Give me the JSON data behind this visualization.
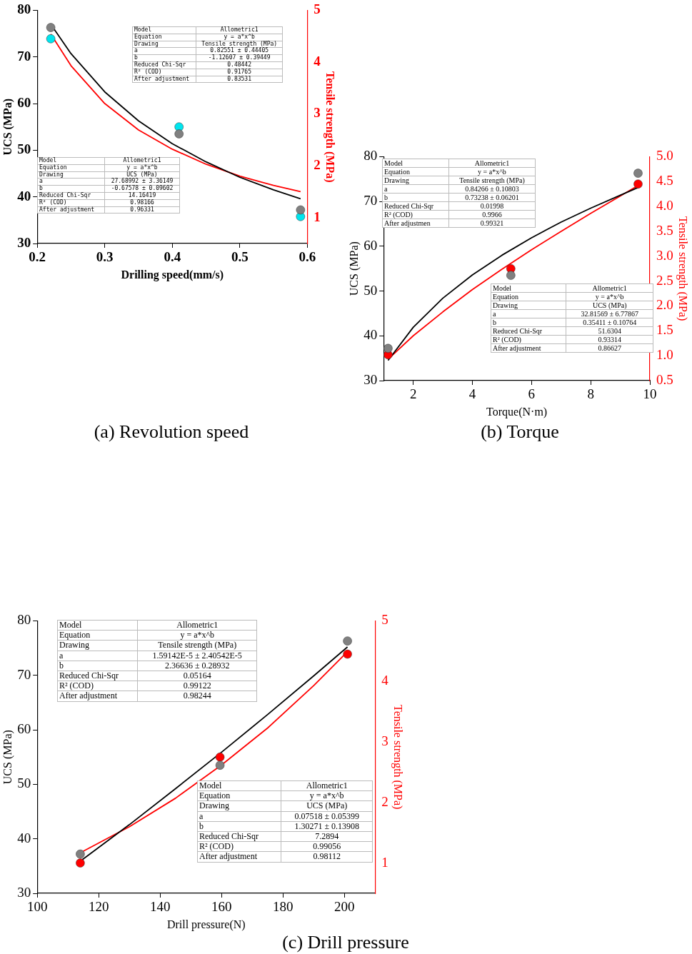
{
  "chart_data": [
    {
      "type": "scatter",
      "xlabel": "Drilling speed(mm/s)",
      "ylabel": "UCS (MPa)",
      "y2label": "Tensile strength (MPa)",
      "xlim": [
        0.2,
        0.6
      ],
      "xticks": [
        0.2,
        0.3,
        0.4,
        0.5,
        0.6
      ],
      "ylim": [
        30,
        80
      ],
      "yticks": [
        30,
        40,
        50,
        60,
        70,
        80
      ],
      "y2lim": [
        0.5,
        5
      ],
      "y2ticks": [
        1,
        2,
        3,
        4,
        5
      ],
      "grid": false,
      "legend": false,
      "marker": "circle",
      "series": [
        {
          "type": "scatter",
          "color": "#808080",
          "x": [
            0.22,
            0.41,
            0.59
          ],
          "values": [
            76.3,
            53.5,
            37.2
          ]
        },
        {
          "type": "scatter",
          "color": "#00e5ee",
          "axis": "y2",
          "x": [
            0.22,
            0.41,
            0.59
          ],
          "values": [
            4.45,
            2.75,
            1.02
          ]
        },
        {
          "type": "line",
          "color": "#000000",
          "marker": "none",
          "x": [
            0.22,
            0.25,
            0.3,
            0.35,
            0.4,
            0.45,
            0.5,
            0.55,
            0.59
          ],
          "values": [
            77.0,
            70.7,
            62.5,
            56.3,
            51.4,
            47.5,
            44.2,
            41.5,
            39.6
          ]
        },
        {
          "type": "line",
          "color": "#ff0000",
          "marker": "none",
          "axis": "y2",
          "x": [
            0.22,
            0.25,
            0.3,
            0.35,
            0.4,
            0.45,
            0.5,
            0.55,
            0.59
          ],
          "values": [
            4.54,
            3.93,
            3.2,
            2.69,
            2.32,
            2.03,
            1.8,
            1.62,
            1.5
          ]
        }
      ],
      "annotations": [
        "(a) Revolution speed",
        "Model",
        "Allometric1",
        "Equation",
        "y = a*x^b",
        "Drawing",
        "Tensile strength (MPa)",
        "a",
        "0.82551 ± 0.44405",
        "b",
        "-1.12607 ± 0.39449",
        "Reduced Chi-Sqr",
        "0.48442",
        "R² (COD)",
        "0.91765",
        "After adjustment",
        "0.83531",
        "Model",
        "Allometric1",
        "Equation",
        "y = a*x^b",
        "Drawing",
        "UCS (MPa)",
        "a",
        "27.68992 ± 3.36149",
        "b",
        "-0.67578 ± 0.09602",
        "Reduced Chi-Sqr",
        "14.16419",
        "R² (COD)",
        "0.98166",
        "After adjustment",
        "0.96331"
      ]
    },
    {
      "type": "scatter",
      "xlabel": "Torque(N·m)",
      "ylabel": "UCS (MPa)",
      "y2label": "Tensile strength (MPa)",
      "xlim": [
        1,
        10
      ],
      "xticks": [
        2,
        4,
        6,
        8,
        10
      ],
      "ylim": [
        30,
        80
      ],
      "yticks": [
        30,
        40,
        50,
        60,
        70,
        80
      ],
      "y2lim": [
        0.5,
        5
      ],
      "y2ticks": [
        {
          "value": 0.5,
          "label": "0.5"
        },
        {
          "value": 1,
          "label": "1.0"
        },
        {
          "value": 1.5,
          "label": "1.5"
        },
        {
          "value": 2,
          "label": "2.0"
        },
        {
          "value": 2.5,
          "label": "2.5"
        },
        {
          "value": 3,
          "label": "3.0"
        },
        {
          "value": 3.5,
          "label": "3.5"
        },
        {
          "value": 4,
          "label": "4.0"
        },
        {
          "value": 4.5,
          "label": "4.5"
        },
        {
          "value": 5,
          "label": "5.0"
        }
      ],
      "grid": false,
      "legend": false,
      "marker": "circle",
      "series": [
        {
          "type": "scatter",
          "color": "#808080",
          "x": [
            1.15,
            5.3,
            9.6
          ],
          "values": [
            37.2,
            53.5,
            76.3
          ]
        },
        {
          "type": "scatter",
          "color": "#ff0000",
          "axis": "y2",
          "x": [
            1.15,
            5.3,
            9.6
          ],
          "values": [
            1.02,
            2.75,
            4.45
          ]
        },
        {
          "type": "line",
          "color": "#000000",
          "marker": "none",
          "x": [
            1.15,
            2,
            3,
            4,
            5,
            6,
            7,
            8,
            9,
            9.6
          ],
          "values": [
            34.5,
            41.9,
            48.4,
            53.6,
            58.0,
            61.9,
            65.4,
            68.5,
            71.4,
            73.1
          ]
        },
        {
          "type": "line",
          "color": "#ff0000",
          "marker": "none",
          "axis": "y2",
          "x": [
            1.15,
            2,
            3,
            4,
            5,
            6,
            7,
            8,
            9,
            9.6
          ],
          "values": [
            0.93,
            1.4,
            1.88,
            2.33,
            2.74,
            3.13,
            3.5,
            3.86,
            4.21,
            4.42
          ]
        }
      ],
      "annotations": [
        "(b) Torque",
        "Model",
        "Allometric1",
        "Equation",
        "y = a*x^b",
        "Drawing",
        "Tensile strength (MPa)",
        "a",
        "0.84266 ± 0.10803",
        "b",
        "0.73238 ± 0.06201",
        "Reduced Chi-Sqr",
        "0.01998",
        "R² (COD)",
        "0.9966",
        "After adjustmen",
        "0.99321",
        "Model",
        "Allometric1",
        "Equation",
        "y = a*x^b",
        "Drawing",
        "UCS (MPa)",
        "a",
        "32.81569 ± 6.77867",
        "b",
        "0.35411 ± 0.10764",
        "Reduced Chi-Sqr",
        "51.6304",
        "R² (COD)",
        "0.93314",
        "After adjustment",
        "0.86627"
      ]
    },
    {
      "type": "scatter",
      "xlabel": "Drill pressure(N)",
      "ylabel": "UCS (MPa)",
      "y2label": "Tensile strength (MPa)",
      "xlim": [
        100,
        210
      ],
      "xticks": [
        100,
        120,
        140,
        160,
        180,
        200
      ],
      "ylim": [
        30,
        80
      ],
      "yticks": [
        30,
        40,
        50,
        60,
        70,
        80
      ],
      "y2lim": [
        0.5,
        5
      ],
      "y2ticks": [
        1,
        2,
        3,
        4,
        5
      ],
      "grid": false,
      "legend": false,
      "marker": "circle",
      "series": [
        {
          "type": "scatter",
          "color": "#808080",
          "x": [
            114,
            159.5,
            201
          ],
          "values": [
            37.2,
            53.5,
            76.3
          ]
        },
        {
          "type": "scatter",
          "color": "#ff0000",
          "axis": "y2",
          "x": [
            114,
            159.5,
            201
          ],
          "values": [
            1.0,
            2.75,
            4.45
          ]
        },
        {
          "type": "line",
          "color": "#000000",
          "marker": "none",
          "x": [
            114,
            130,
            145,
            160,
            175,
            190,
            201
          ],
          "values": [
            35.9,
            42.6,
            49.2,
            55.9,
            62.8,
            69.9,
            75.2
          ]
        },
        {
          "type": "line",
          "color": "#ff0000",
          "marker": "none",
          "axis": "y2",
          "x": [
            114,
            130,
            145,
            160,
            175,
            190,
            201
          ],
          "values": [
            1.17,
            1.6,
            2.07,
            2.62,
            3.23,
            3.93,
            4.49
          ]
        }
      ],
      "annotations": [
        "(c) Drill pressure",
        "Model",
        "Allometric1",
        "Equation",
        "y = a*x^b",
        "Drawing",
        "Tensile strength (MPa)",
        "a",
        "1.59142E-5 ± 2.40542E-5",
        "b",
        "2.36636 ± 0.28932",
        "Reduced Chi-Sqr",
        "0.05164",
        "R² (COD)",
        "0.99122",
        "After adjustment",
        "0.98244",
        "Model",
        "Allometric1",
        "Equation",
        "y = a*x^b",
        "Drawing",
        "UCS (MPa)",
        "a",
        "0.07518 ± 0.05399",
        "b",
        "1.30271 ± 0.13908",
        "Reduced Chi-Sqr",
        "7.2894",
        "R² (COD)",
        "0.99056",
        "After adjustment",
        "0.98112"
      ]
    }
  ]
}
